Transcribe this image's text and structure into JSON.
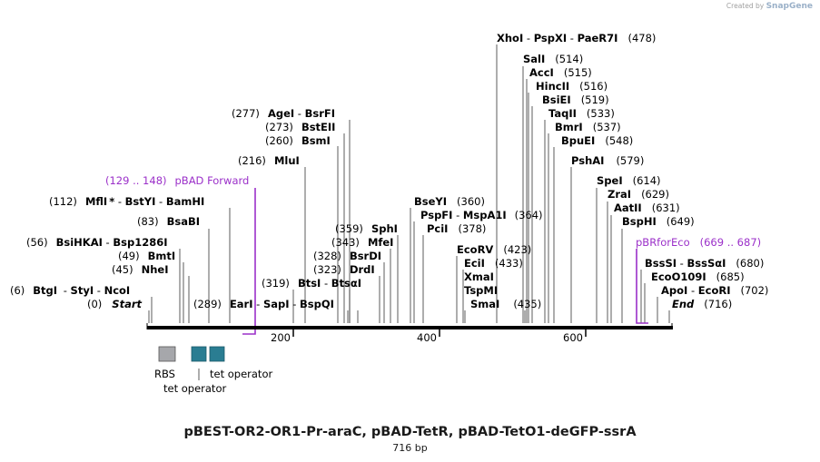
{
  "brand": {
    "created_by": "Created by",
    "name": "SnapGene"
  },
  "plasmid": {
    "title": "pBEST-OR2-OR1-Pr-araC, pBAD-TetR, pBAD-TetO1-deGFP-ssrA",
    "length": "716 bp"
  },
  "ruler": {
    "ticks": [
      "200",
      "400",
      "600"
    ]
  },
  "sites": {
    "start": {
      "pos": "(0)",
      "name": "Start"
    },
    "end": {
      "name": "End",
      "pos": "(716)"
    },
    "btgi": {
      "pos": "(6)",
      "n1": "BtgI",
      "n2": "StyI",
      "n3": "NcoI"
    },
    "bsihkai": {
      "pos": "(56)",
      "n1": "BsiHKAI",
      "n2": "Bsp1286I"
    },
    "bmti": {
      "pos": "(49)",
      "name": "BmtI"
    },
    "nhei": {
      "pos": "(45)",
      "name": "NheI"
    },
    "bsabi": {
      "pos": "(83)",
      "name": "BsaBI"
    },
    "mfli": {
      "pos": "(112)",
      "n1": "MflI",
      "star": "*",
      "n2": "BstYI",
      "n3": "BamHI"
    },
    "pbadfwd": {
      "range": "(129 .. 148)",
      "name": "pBAD Forward"
    },
    "mlui": {
      "pos": "(216)",
      "name": "MluI"
    },
    "bsmi": {
      "pos": "(260)",
      "name": "BsmI"
    },
    "bsteii": {
      "pos": "(273)",
      "name": "BstEII"
    },
    "agei": {
      "pos": "(277)",
      "n1": "AgeI",
      "n2": "BsrFI"
    },
    "eari": {
      "pos": "(289)",
      "n1": "EarI",
      "n2": "SapI",
      "n3": "BspQI"
    },
    "btsi": {
      "pos": "(319)",
      "n1": "BtsI",
      "n2": "BtsαI"
    },
    "drdi": {
      "pos": "(323)",
      "name": "DrdI"
    },
    "bsrdi": {
      "pos": "(328)",
      "name": "BsrDI"
    },
    "mfei": {
      "pos": "(343)",
      "name": "MfeI"
    },
    "sphi": {
      "pos": "(359)",
      "name": "SphI"
    },
    "bseyi": {
      "name": "BseYI",
      "pos": "(360)"
    },
    "pspfi": {
      "n1": "PspFI",
      "n2": "MspA1I",
      "pos": "(364)"
    },
    "pcii": {
      "name": "PciI",
      "pos": "(378)"
    },
    "ecorv": {
      "name": "EcoRV",
      "pos": "(423)"
    },
    "ecii": {
      "name": "EciI",
      "pos": "(433)"
    },
    "xmai": {
      "name": "XmaI"
    },
    "tspmi": {
      "name": "TspMI"
    },
    "smai": {
      "name": "SmaI",
      "pos": "(435)"
    },
    "xhoi": {
      "n1": "XhoI",
      "n2": "PspXI",
      "n3": "PaeR7I",
      "pos": "(478)"
    },
    "sali": {
      "name": "SalI",
      "pos": "(514)"
    },
    "acci": {
      "name": "AccI",
      "pos": "(515)"
    },
    "hincii": {
      "name": "HincII",
      "pos": "(516)"
    },
    "bsiei": {
      "name": "BsiEI",
      "pos": "(519)"
    },
    "taqii": {
      "name": "TaqII",
      "pos": "(533)"
    },
    "bmri": {
      "name": "BmrI",
      "pos": "(537)"
    },
    "bpuei": {
      "name": "BpuEI",
      "pos": "(548)"
    },
    "pshai": {
      "name": "PshAI",
      "pos": "(579)"
    },
    "spei": {
      "name": "SpeI",
      "pos": "(614)"
    },
    "zrai": {
      "name": "ZraI",
      "pos": "(629)"
    },
    "aatii": {
      "name": "AatII",
      "pos": "(631)"
    },
    "bsphi": {
      "name": "BspHI",
      "pos": "(649)"
    },
    "pbrforeco": {
      "name": "pBRforEco",
      "range": "(669 .. 687)"
    },
    "bsssi": {
      "n1": "BssSI",
      "n2": "BssSαI",
      "pos": "(680)"
    },
    "ecoo109i": {
      "name": "EcoO109I",
      "pos": "(685)"
    },
    "apoi": {
      "n1": "ApoI",
      "n2": "EcoRI",
      "pos": "(702)"
    }
  },
  "features": {
    "rbs": {
      "label": "RBS",
      "color": "#a6a7ab"
    },
    "teto1": {
      "label": "tet operator",
      "color": "#2a7d92"
    },
    "teto2": {
      "label": "tet operator",
      "color": "#2a7d92"
    }
  },
  "colors": {
    "primer": "#9b30c9",
    "backbone": "#000000"
  }
}
